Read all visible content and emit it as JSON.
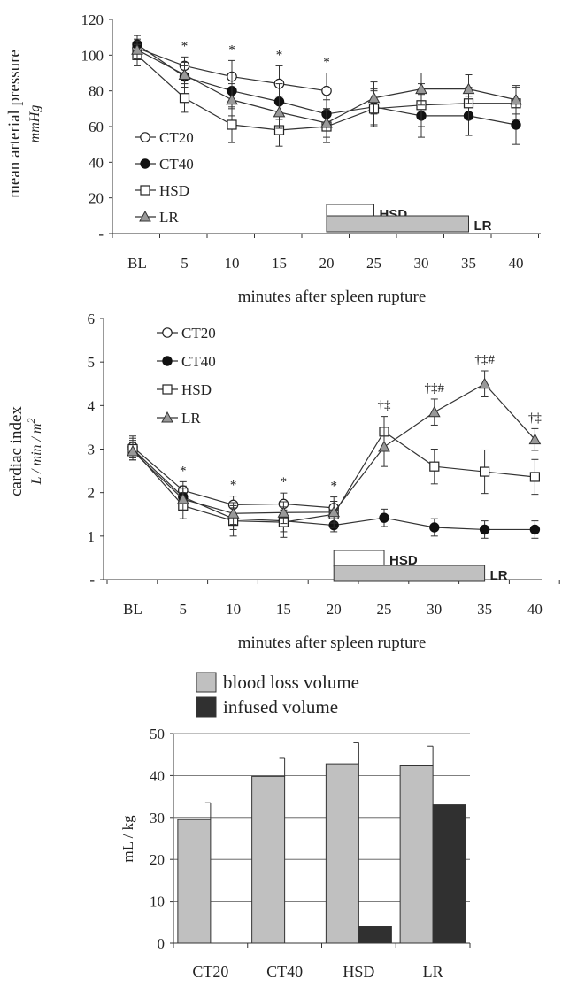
{
  "chart_data": [
    {
      "type": "line",
      "ylabel": "mean arterial pressure",
      "ylabel_unit": "mmHg",
      "xlabel": "minutes after spleen rupture",
      "categories": [
        "BL",
        "5",
        "10",
        "15",
        "20",
        "25",
        "30",
        "35",
        "40"
      ],
      "yticks": [
        "-",
        "20",
        "40",
        "60",
        "80",
        "100",
        "120"
      ],
      "ylim": [
        0,
        120
      ],
      "series": [
        {
          "name": "CT20",
          "marker": "circle-open",
          "values": [
            104,
            94,
            88,
            84,
            80,
            null,
            null,
            null,
            null
          ],
          "err": [
            5,
            5,
            9,
            10,
            10,
            null,
            null,
            null,
            null
          ]
        },
        {
          "name": "CT40",
          "marker": "circle-filled",
          "values": [
            106,
            88,
            80,
            74,
            67,
            71,
            66,
            66,
            61
          ],
          "err": [
            5,
            6,
            10,
            10,
            8,
            10,
            12,
            11,
            11
          ]
        },
        {
          "name": "HSD",
          "marker": "square-open",
          "values": [
            100,
            76,
            61,
            58,
            60,
            70,
            72,
            73,
            73
          ],
          "err": [
            6,
            8,
            10,
            9,
            9,
            10,
            12,
            9,
            9
          ]
        },
        {
          "name": "LR",
          "marker": "triangle-gray",
          "values": [
            103,
            89,
            75,
            68,
            62,
            76,
            81,
            81,
            75
          ],
          "err": [
            5,
            7,
            9,
            9,
            8,
            9,
            9,
            8,
            8
          ]
        }
      ],
      "annotations": [
        {
          "category": "5",
          "text": "*"
        },
        {
          "category": "10",
          "text": "*"
        },
        {
          "category": "15",
          "text": "*"
        },
        {
          "category": "20",
          "text": "*"
        }
      ],
      "infusion_bars": [
        {
          "label": "HSD",
          "from": "20",
          "to": "25",
          "fill": "#ffffff"
        },
        {
          "label": "LR",
          "from": "20",
          "to": "35",
          "fill": "#c0c0c0"
        }
      ],
      "legend": "left"
    },
    {
      "type": "line",
      "ylabel": "cardiac index",
      "ylabel_unit": "L / min / m",
      "ylabel_unit_sup": "2",
      "xlabel": "minutes after spleen rupture",
      "categories": [
        "BL",
        "5",
        "10",
        "15",
        "20",
        "25",
        "30",
        "35",
        "40"
      ],
      "yticks": [
        "-",
        "1",
        "2",
        "3",
        "4",
        "5",
        "6"
      ],
      "ylim": [
        0,
        6
      ],
      "series": [
        {
          "name": "CT20",
          "marker": "circle-open",
          "values": [
            3.05,
            2.05,
            1.72,
            1.74,
            1.65,
            null,
            null,
            null,
            null
          ],
          "err": [
            0.25,
            0.2,
            0.2,
            0.25,
            0.25,
            null,
            null,
            null,
            null
          ]
        },
        {
          "name": "CT40",
          "marker": "circle-filled",
          "values": [
            3.0,
            1.9,
            1.4,
            1.35,
            1.25,
            1.42,
            1.2,
            1.15,
            1.15
          ],
          "err": [
            0.2,
            0.25,
            0.25,
            0.25,
            0.15,
            0.2,
            0.2,
            0.2,
            0.2
          ]
        },
        {
          "name": "HSD",
          "marker": "square-open",
          "values": [
            3.0,
            1.7,
            1.35,
            1.32,
            1.5,
            3.4,
            2.6,
            2.48,
            2.36
          ],
          "err": [
            0.25,
            0.3,
            0.35,
            0.35,
            0.3,
            0.35,
            0.4,
            0.5,
            0.4
          ]
        },
        {
          "name": "LR",
          "marker": "triangle-gray",
          "values": [
            2.95,
            1.85,
            1.52,
            1.54,
            1.55,
            3.05,
            3.85,
            4.5,
            3.22
          ],
          "err": [
            0.2,
            0.25,
            0.25,
            0.25,
            0.25,
            0.45,
            0.3,
            0.3,
            0.25
          ]
        }
      ],
      "annotations": [
        {
          "category": "5",
          "text": "*"
        },
        {
          "category": "10",
          "text": "*"
        },
        {
          "category": "15",
          "text": "*"
        },
        {
          "category": "20",
          "text": "*"
        },
        {
          "category": "25",
          "text": "†‡"
        },
        {
          "category": "30",
          "text": "†‡#"
        },
        {
          "category": "35",
          "text": "†‡#"
        },
        {
          "category": "40",
          "text": "†‡"
        }
      ],
      "infusion_bars": [
        {
          "label": "HSD",
          "from": "20",
          "to": "25",
          "fill": "#ffffff"
        },
        {
          "label": "LR",
          "from": "20",
          "to": "35",
          "fill": "#c0c0c0"
        }
      ],
      "legend": "top-left"
    },
    {
      "type": "bar",
      "ylabel": "mL / kg",
      "categories": [
        "CT20",
        "CT40",
        "HSD",
        "LR"
      ],
      "yticks": [
        "0",
        "10",
        "20",
        "30",
        "40",
        "50"
      ],
      "ylim": [
        0,
        50
      ],
      "series": [
        {
          "name": "blood loss volume",
          "color": "#c0c0c0",
          "values": [
            29.5,
            39.8,
            42.8,
            42.3
          ],
          "err": [
            4,
            4.3,
            5,
            4.7
          ]
        },
        {
          "name": "infused volume",
          "color": "#303030",
          "values": [
            null,
            null,
            4,
            33
          ],
          "err": [
            null,
            null,
            null,
            null
          ]
        }
      ],
      "legend": "top"
    }
  ]
}
